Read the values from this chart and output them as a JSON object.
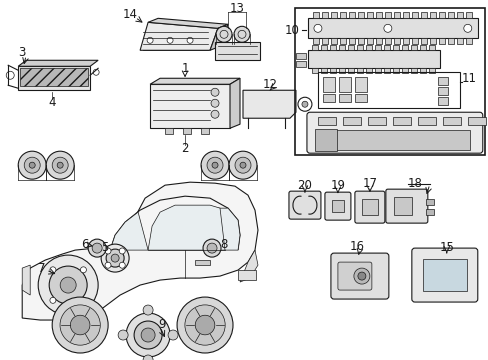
{
  "bg_color": "#ffffff",
  "fig_width": 4.89,
  "fig_height": 3.6,
  "dpi": 100,
  "lw_thin": 0.5,
  "lw_med": 0.8,
  "lw_thick": 1.2,
  "line_color": "#1a1a1a",
  "fill_light": "#f0f0f0",
  "fill_med": "#d8d8d8",
  "fill_dark": "#aaaaaa",
  "label_fontsize": 7.5
}
